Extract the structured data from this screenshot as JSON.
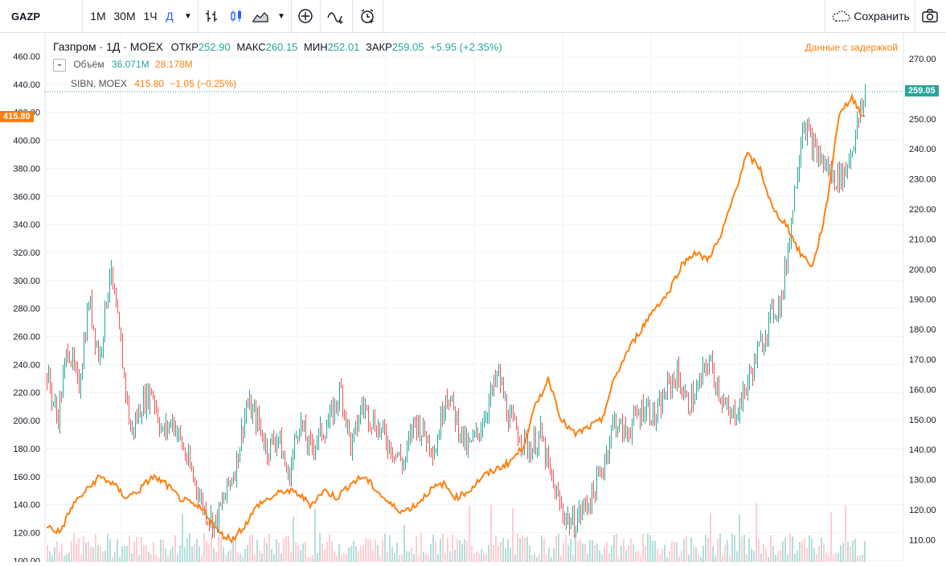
{
  "toolbar": {
    "symbol": "GAZP",
    "intervals": [
      "1М",
      "30М",
      "1Ч",
      "Д"
    ],
    "active_interval": "Д",
    "save_label": "Сохранить"
  },
  "legend": {
    "main": {
      "title": "Газпром · 1Д · MOEX",
      "open_label": "ОТКР",
      "open": "252.90",
      "high_label": "МАКС",
      "high": "260.15",
      "low_label": "МИН",
      "low": "252.01",
      "close_label": "ЗАКР",
      "close": "259.05",
      "change": "+5.95 (+2.35%)"
    },
    "volume": {
      "label": "Объём",
      "v1": "36.071M",
      "v2": "28.178M"
    },
    "compare": {
      "label": "SIBN, MOEX",
      "value": "415.80",
      "change": "−1.05 (−0.25%)"
    },
    "delay_note": "Данные с задержкой"
  },
  "tags": {
    "left": "415.80",
    "right": "259.05"
  },
  "colors": {
    "up": "#26a69a",
    "down": "#ef5350",
    "compare": "#ff7f0e",
    "volume": "#b2dfdb"
  },
  "chart_data": {
    "type": "line",
    "left_axis": {
      "ticks": [
        "460.00",
        "440.00",
        "420.00",
        "400.00",
        "380.00",
        "360.00",
        "340.00",
        "320.00",
        "300.00",
        "280.00",
        "260.00",
        "240.00",
        "220.00",
        "200.00",
        "180.00",
        "160.00",
        "140.00",
        "120.00",
        "100.00"
      ],
      "range": [
        100,
        460
      ]
    },
    "right_axis": {
      "ticks": [
        "270.00",
        "260.00",
        "250.00",
        "240.00",
        "230.00",
        "220.00",
        "210.00",
        "200.00",
        "190.00",
        "180.00",
        "170.00",
        "160.00",
        "150.00",
        "140.00",
        "130.00",
        "120.00",
        "110.00"
      ],
      "range": [
        107,
        273
      ]
    },
    "series": [
      {
        "name": "GAZP",
        "axis": "right",
        "values": [
          165,
          150,
          175,
          160,
          190,
          170,
          200,
          175,
          145,
          155,
          160,
          145,
          150,
          140,
          130,
          120,
          115,
          125,
          135,
          155,
          150,
          140,
          145,
          130,
          150,
          140,
          145,
          150,
          160,
          140,
          155,
          150,
          145,
          140,
          135,
          150,
          145,
          140,
          160,
          150,
          140,
          145,
          155,
          165,
          150,
          145,
          140,
          145,
          130,
          120,
          115,
          120,
          125,
          135,
          150,
          145,
          150,
          155,
          150,
          160,
          165,
          155,
          160,
          170,
          160,
          150,
          155,
          165,
          175,
          185,
          190,
          220,
          250,
          240,
          235,
          230,
          232,
          245,
          259
        ]
      },
      {
        "name": "SIBN",
        "axis": "left",
        "values": [
          125,
          120,
          140,
          150,
          160,
          155,
          145,
          150,
          160,
          155,
          145,
          140,
          135,
          120,
          115,
          125,
          140,
          145,
          150,
          148,
          140,
          150,
          145,
          155,
          160,
          150,
          140,
          135,
          140,
          150,
          155,
          145,
          150,
          160,
          165,
          170,
          180,
          210,
          230,
          200,
          190,
          195,
          200,
          230,
          250,
          265,
          280,
          290,
          310,
          320,
          315,
          330,
          360,
          390,
          380,
          350,
          340,
          320,
          310,
          350,
          420,
          430,
          415
        ]
      }
    ]
  }
}
